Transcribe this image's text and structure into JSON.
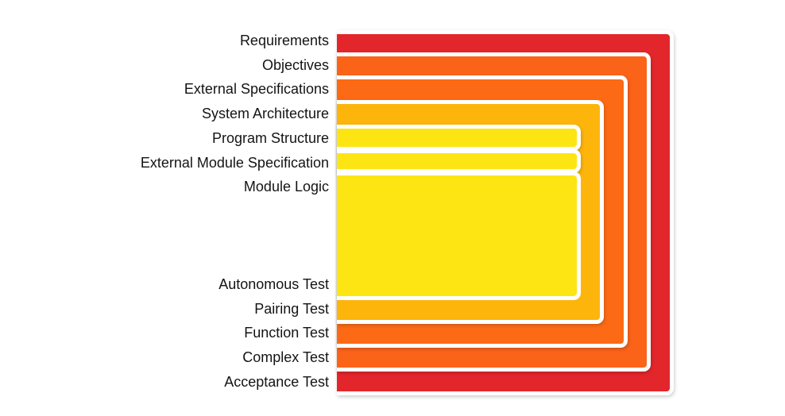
{
  "diagram": {
    "levels": [
      {
        "label": "Requirements",
        "color": "#e3262b"
      },
      {
        "label": "Objectives",
        "color": "#fb6319"
      },
      {
        "label": "External Specifications",
        "color": "#fc6a15"
      },
      {
        "label": "System Architecture",
        "color": "#fdb50c"
      },
      {
        "label": "Program Structure",
        "color": "#fde514"
      },
      {
        "label": "External Module Specification",
        "color": "#fde514"
      },
      {
        "label": "Module Logic",
        "color": "#fde514"
      }
    ],
    "tests": [
      {
        "label": "Autonomous Test"
      },
      {
        "label": "Pairing Test"
      },
      {
        "label": "Function Test"
      },
      {
        "label": "Complex Test"
      },
      {
        "label": "Acceptance Test"
      }
    ]
  }
}
